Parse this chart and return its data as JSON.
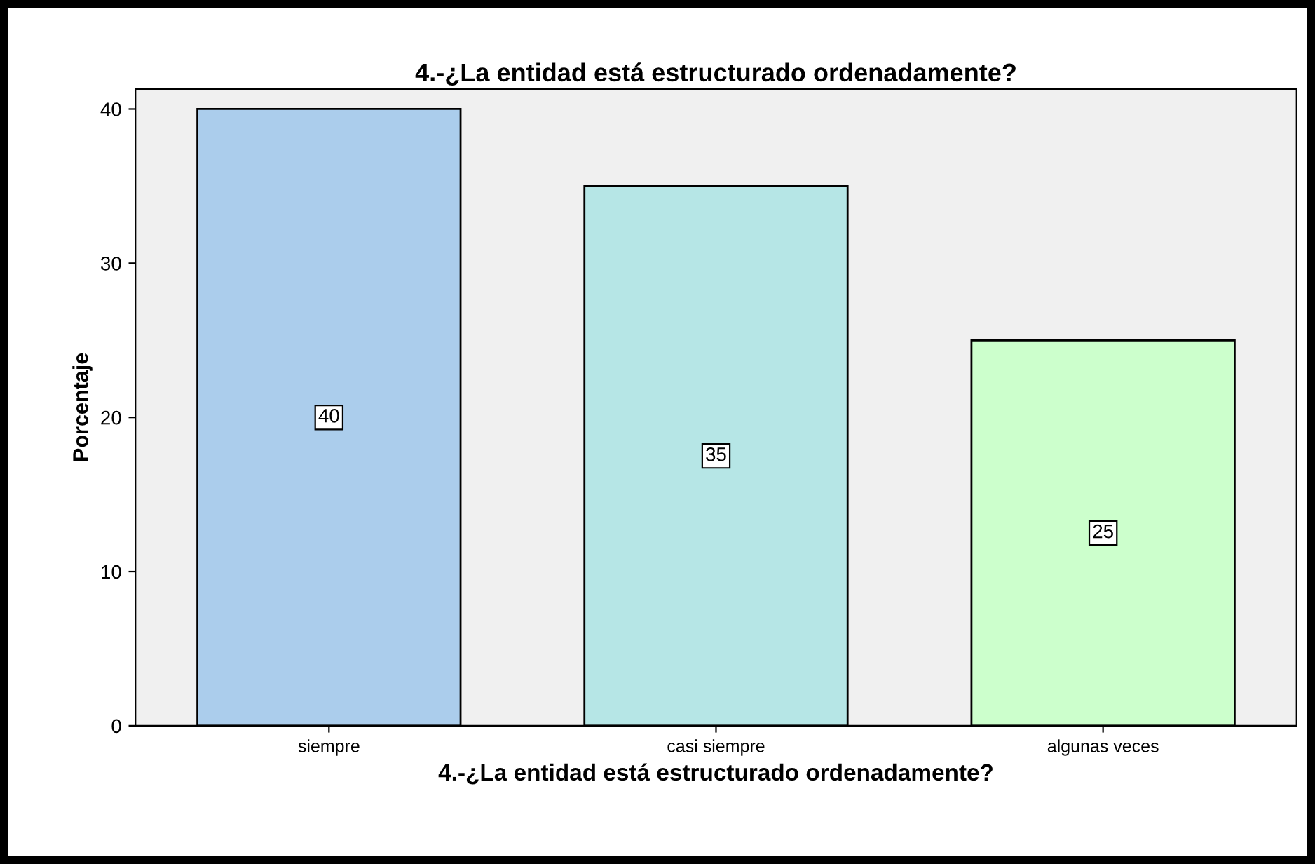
{
  "chart_data": {
    "type": "bar",
    "title": "4.-¿La entidad está estructurado ordenadamente?",
    "xlabel": "4.-¿La entidad está estructurado ordenadamente?",
    "ylabel": "Porcentaje",
    "categories": [
      "siempre",
      "casi siempre",
      "algunas veces"
    ],
    "values": [
      40,
      35,
      25
    ],
    "colors": [
      "#abcdec",
      "#b6e6e6",
      "#ccffcc"
    ],
    "ylim": [
      0,
      41.3
    ],
    "yticks": [
      0,
      10,
      20,
      30,
      40
    ],
    "grid": false,
    "legend": false,
    "data_labels": true
  }
}
